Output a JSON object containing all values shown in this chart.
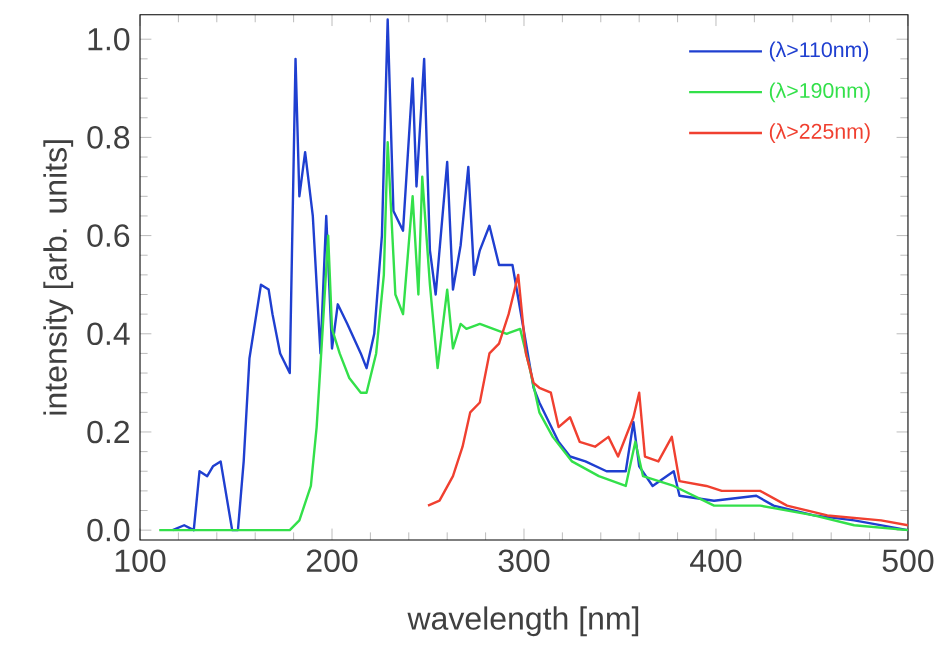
{
  "chart_data": {
    "type": "line",
    "xlabel": "wavelength [nm]",
    "ylabel": "intensity [arb. units]",
    "xlim": [
      100,
      500
    ],
    "ylim": [
      -0.02,
      1.05
    ],
    "xticks": [
      100,
      200,
      300,
      400,
      500
    ],
    "yticks": [
      {
        "value": 0,
        "label": "0.0"
      },
      {
        "value": 0.2,
        "label": "0.2"
      },
      {
        "value": 0.4,
        "label": "0.4"
      },
      {
        "value": 0.6,
        "label": "0.6"
      },
      {
        "value": 0.8,
        "label": "0.8"
      },
      {
        "value": 1.0,
        "label": "1.0"
      }
    ],
    "legend": "top right",
    "marker": "none",
    "line_style": "solid",
    "grid": false,
    "series": [
      {
        "name": "(λ>110nm)",
        "color": "#1f3fd0",
        "x": [
          117,
          123,
          128,
          131,
          135,
          138,
          142,
          145,
          148,
          151,
          154,
          157,
          163,
          167,
          169,
          173,
          178,
          181,
          183,
          186,
          190,
          194,
          197,
          200,
          203,
          208,
          215,
          218,
          222,
          226,
          229,
          232,
          237,
          242,
          244,
          248,
          251,
          254,
          260,
          263,
          267,
          271,
          274,
          277,
          282,
          287,
          294,
          298,
          305,
          308,
          313,
          318,
          324,
          332,
          343,
          353,
          357,
          360,
          367,
          378,
          381,
          399,
          421,
          430,
          451,
          472,
          500
        ],
        "values": [
          0,
          0.01,
          0,
          0.12,
          0.11,
          0.13,
          0.14,
          0.07,
          0,
          0,
          0.14,
          0.35,
          0.5,
          0.49,
          0.44,
          0.36,
          0.32,
          0.96,
          0.68,
          0.77,
          0.64,
          0.36,
          0.64,
          0.37,
          0.46,
          0.42,
          0.36,
          0.33,
          0.4,
          0.6,
          1.04,
          0.65,
          0.61,
          0.92,
          0.7,
          0.96,
          0.57,
          0.48,
          0.75,
          0.49,
          0.58,
          0.74,
          0.52,
          0.57,
          0.62,
          0.54,
          0.54,
          0.45,
          0.29,
          0.26,
          0.22,
          0.18,
          0.15,
          0.14,
          0.12,
          0.12,
          0.22,
          0.13,
          0.09,
          0.12,
          0.07,
          0.06,
          0.07,
          0.05,
          0.03,
          0.02,
          0
        ]
      },
      {
        "name": "(λ>190nm)",
        "color": "#33e04a",
        "x": [
          110,
          178,
          183,
          189,
          192,
          195,
          198,
          200,
          204,
          209,
          215,
          218,
          223,
          227,
          229,
          233,
          237,
          242,
          245,
          247,
          251,
          255,
          260,
          263,
          267,
          270,
          277,
          284,
          291,
          298,
          303,
          308,
          315,
          325,
          339,
          353,
          358,
          362,
          378,
          399,
          423,
          451,
          472,
          500
        ],
        "values": [
          0,
          0,
          0.02,
          0.09,
          0.21,
          0.4,
          0.6,
          0.41,
          0.36,
          0.31,
          0.28,
          0.28,
          0.36,
          0.52,
          0.79,
          0.48,
          0.44,
          0.68,
          0.48,
          0.72,
          0.5,
          0.33,
          0.49,
          0.37,
          0.42,
          0.41,
          0.42,
          0.41,
          0.4,
          0.41,
          0.33,
          0.24,
          0.19,
          0.14,
          0.11,
          0.09,
          0.18,
          0.11,
          0.09,
          0.05,
          0.05,
          0.03,
          0.01,
          0
        ]
      },
      {
        "name": "(λ>225nm)",
        "color": "#f04030",
        "x": [
          250,
          256,
          263,
          268,
          272,
          277,
          282,
          287,
          292,
          297,
          301,
          305,
          308,
          314,
          318,
          324,
          329,
          337,
          344,
          349,
          357,
          360,
          363,
          370,
          377,
          381,
          395,
          403,
          423,
          437,
          458,
          486,
          500
        ],
        "values": [
          0.05,
          0.06,
          0.11,
          0.17,
          0.24,
          0.26,
          0.36,
          0.38,
          0.44,
          0.52,
          0.36,
          0.3,
          0.29,
          0.28,
          0.21,
          0.23,
          0.18,
          0.17,
          0.19,
          0.15,
          0.23,
          0.28,
          0.15,
          0.14,
          0.19,
          0.1,
          0.09,
          0.08,
          0.08,
          0.05,
          0.03,
          0.02,
          0.01
        ]
      }
    ]
  }
}
